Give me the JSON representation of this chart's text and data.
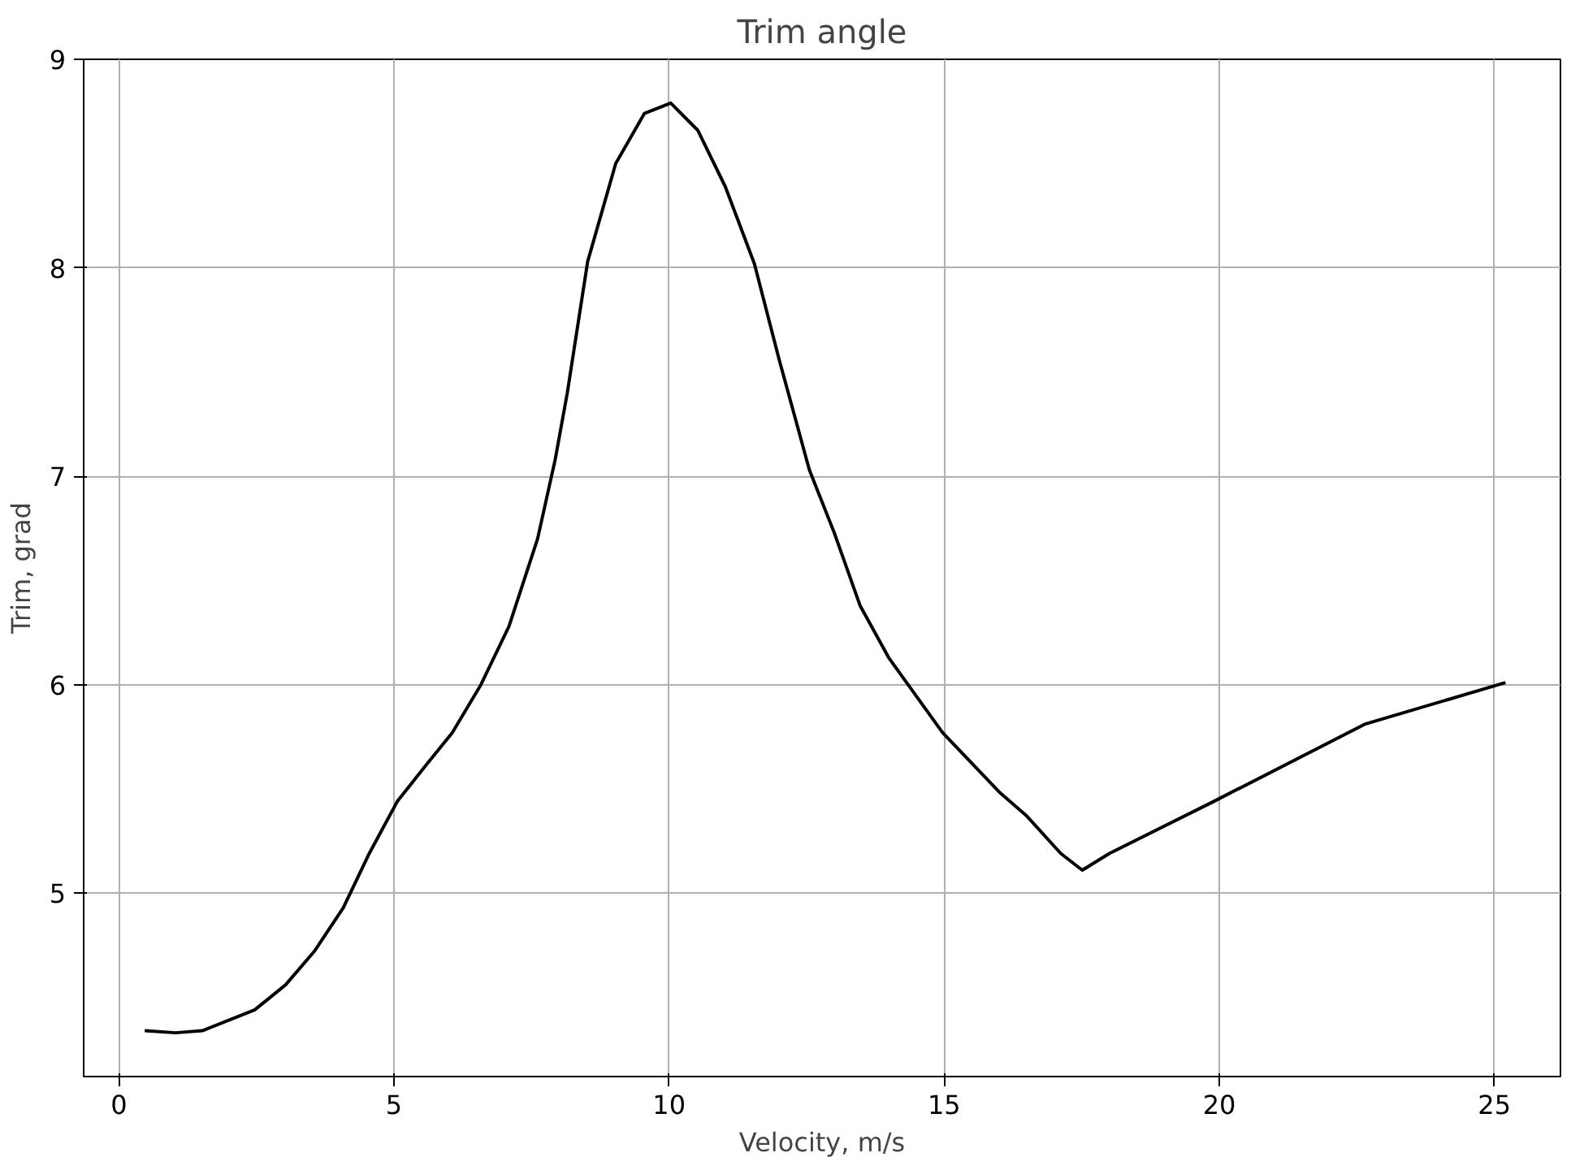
{
  "chart_data": {
    "type": "line",
    "title": "Trim angle",
    "xlabel": "Velocity, m/s",
    "ylabel": "Trim, grad",
    "xlim": [
      -0.64,
      26.2
    ],
    "ylim": [
      4.12,
      9
    ],
    "xticks": [
      0,
      5,
      10,
      15,
      20,
      25
    ],
    "yticks": [
      5,
      6,
      7,
      8,
      9
    ],
    "grid": true,
    "line_style": "solid",
    "series": [
      {
        "color": "#000000",
        "x": [
          0.47,
          1.03,
          1.52,
          2.47,
          3.03,
          3.55,
          4.08,
          4.55,
          5.06,
          5.54,
          6.06,
          6.58,
          7.09,
          7.61,
          7.93,
          8.15,
          8.52,
          9.03,
          9.55,
          10.03,
          10.52,
          11.02,
          11.55,
          12.0,
          12.55,
          13.0,
          13.47,
          13.99,
          14.97,
          16.02,
          16.5,
          17.12,
          17.51,
          18.0,
          19.9,
          22.64,
          25.2
        ],
        "values": [
          4.34,
          4.33,
          4.34,
          4.44,
          4.56,
          4.72,
          4.93,
          5.19,
          5.44,
          5.6,
          5.77,
          6.0,
          6.28,
          6.7,
          7.08,
          7.4,
          8.03,
          8.5,
          8.74,
          8.79,
          8.66,
          8.39,
          8.02,
          7.56,
          7.03,
          6.73,
          6.38,
          6.13,
          5.77,
          5.48,
          5.37,
          5.19,
          5.11,
          5.19,
          5.44,
          5.81,
          6.01
        ]
      }
    ]
  }
}
